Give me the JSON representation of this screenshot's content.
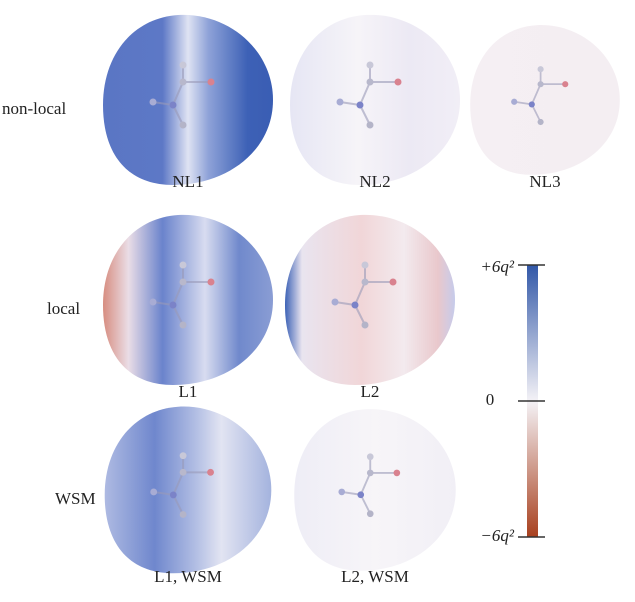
{
  "row_labels": [
    "non-local",
    "local",
    "WSM"
  ],
  "panels": [
    {
      "caption": "NL1"
    },
    {
      "caption": "NL2"
    },
    {
      "caption": "NL3"
    },
    {
      "caption": "L1"
    },
    {
      "caption": "L2"
    },
    {
      "caption": "L1, WSM"
    },
    {
      "caption": "L2, WSM"
    }
  ],
  "colorbar": {
    "max_label": "+6q²",
    "zero_label": "0",
    "min_label": "−6q²"
  }
}
